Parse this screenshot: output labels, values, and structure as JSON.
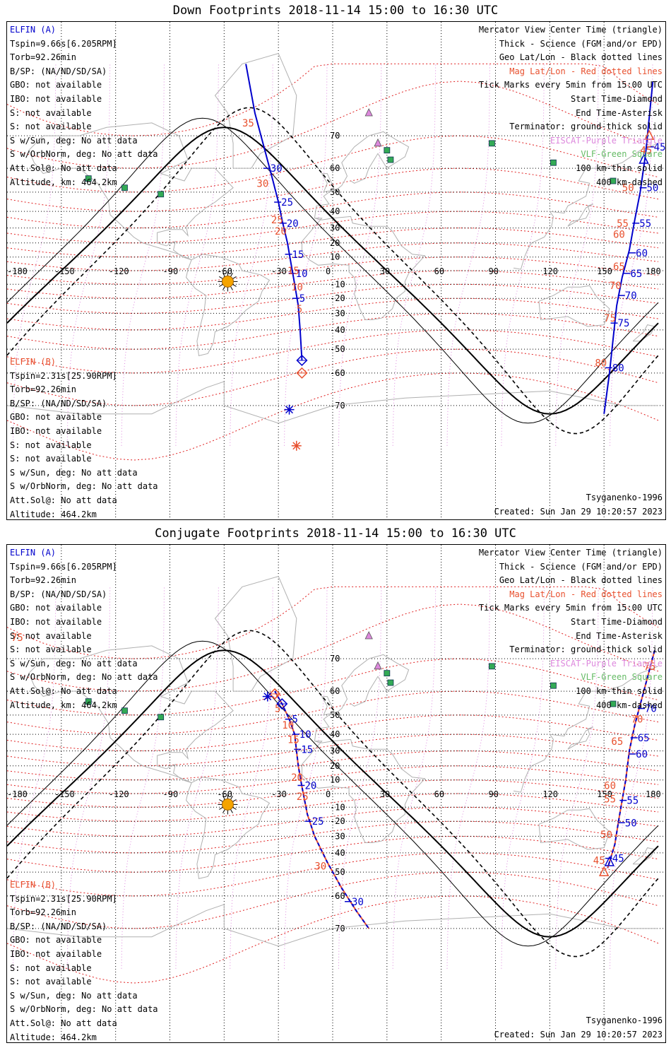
{
  "panels": [
    {
      "title": "Down Footprints 2018-11-14 15:00 to 16:30 UTC",
      "sat_a": {
        "name": "ELFIN (A)",
        "tspin": "Tspin=9.66s[6.205RPM]",
        "torb": "Torb=92.26min",
        "bsp": "B/SP: (NA/ND/SD/SA)",
        "gbo": "GBO: not available",
        "ibo": "IBO: not available",
        "s1": "S: not available",
        "s2": "S: not available",
        "sun": "S w/Sun, deg: No att data",
        "orbnorm": "S w/OrbNorm, deg: No att data",
        "attsol": "Att.Sol@: No att data",
        "alt": "Altitude, km: 464.2km"
      },
      "sat_b": {
        "name": "ELFIN (B)",
        "tspin": "Tspin=2.31s[25.90RPM]",
        "torb": "Torb=92.26min",
        "bsp": "B/SP: (NA/ND/SD/SA)",
        "gbo": "GBO: not available",
        "ibo": "IBO: not available",
        "s1": "S: not available",
        "s2": "S: not available",
        "sun": "S w/Sun, deg: No att data",
        "orbnorm": "S w/OrbNorm, deg: No att data",
        "attsol": "Att.Sol@: No att data",
        "alt": "Altitude: 464.2km"
      },
      "legend": {
        "l1": "Mercator View Center Time (triangle)",
        "l2": "Thick - Science (FGM and/or EPD)",
        "l3": "Geo Lat/Lon - Black dotted lines",
        "l4": "Mag Lat/Lon - Red dotted lines",
        "l5": "Tick Marks every 5min from 15:00 UTC",
        "l6": "Start Time-Diamond",
        "l7": "End Time-Asterisk",
        "l8": "Terminator: ground-thick solid",
        "l9": "EISCAT-Purple Triangle",
        "l10": "VLF-Green Square",
        "l11": "100 km-thin solid",
        "l12": "400 km-dashed"
      },
      "model": "Tsyganenko-1996",
      "created": "Created: Sun Jan 29 10:20:57 2023",
      "lon_labels": [
        "-180",
        "-150",
        "-120",
        "-90",
        "-60",
        "-30",
        "0",
        "30",
        "60",
        "90",
        "120",
        "150",
        "180"
      ],
      "lat_labels": [
        "70",
        "60",
        "50",
        "40",
        "30",
        "20",
        "10",
        "0",
        "-10",
        "-20",
        "-30",
        "-40",
        "-50",
        "-60",
        "-70"
      ],
      "track_a": [
        {
          "lon": -48,
          "lat": 82
        },
        {
          "lon": -43,
          "lat": 75
        },
        {
          "lon": -37,
          "lat": 65
        },
        {
          "lon": -33,
          "lat": 55
        },
        {
          "lon": -30,
          "lat": 45
        },
        {
          "lon": -28,
          "lat": 35
        },
        {
          "lon": -25,
          "lat": 20
        },
        {
          "lon": -23,
          "lat": 5
        },
        {
          "lon": -21,
          "lat": -10
        },
        {
          "lon": -19,
          "lat": -25
        },
        {
          "lon": -18,
          "lat": -40
        },
        {
          "lon": -17,
          "lat": -55
        }
      ],
      "track_b": [
        {
          "lon": 177,
          "lat": 80
        },
        {
          "lon": 173,
          "lat": 65
        },
        {
          "lon": 170,
          "lat": 50
        },
        {
          "lon": 167,
          "lat": 35
        },
        {
          "lon": 164,
          "lat": 15
        },
        {
          "lon": 160,
          "lat": -5
        },
        {
          "lon": 157,
          "lat": -25
        },
        {
          "lon": 155,
          "lat": -45
        },
        {
          "lon": 153,
          "lat": -60
        },
        {
          "lon": 150,
          "lat": -72
        }
      ],
      "ticks_a": [
        {
          "label": "30",
          "lon": -36,
          "lat": 60
        },
        {
          "label": "25",
          "lon": -30,
          "lat": 45
        },
        {
          "label": "20",
          "lon": -27,
          "lat": 33
        },
        {
          "label": "15",
          "lon": -24,
          "lat": 12
        },
        {
          "label": "10",
          "lon": -22,
          "lat": -2
        },
        {
          "label": "5",
          "lon": -20,
          "lat": -20
        }
      ],
      "ticks_b": [
        {
          "label": "45",
          "lon": 176,
          "lat": 67
        },
        {
          "label": "50",
          "lon": 172,
          "lat": 52
        },
        {
          "label": "55",
          "lon": 168,
          "lat": 33
        },
        {
          "label": "60",
          "lon": 166,
          "lat": 13
        },
        {
          "label": "65",
          "lon": 163,
          "lat": -2
        },
        {
          "label": "70",
          "lon": 160,
          "lat": -18
        },
        {
          "label": "75",
          "lon": 156,
          "lat": -36
        },
        {
          "label": "80",
          "lon": 153,
          "lat": -58
        }
      ],
      "mag_labels": [
        {
          "label": "35",
          "lon": -50,
          "lat": 73
        },
        {
          "label": "30",
          "lon": -42,
          "lat": 54
        },
        {
          "label": "25",
          "lon": -34,
          "lat": 35
        },
        {
          "label": "20",
          "lon": -32,
          "lat": 28
        },
        {
          "label": "15",
          "lon": -25,
          "lat": 0
        },
        {
          "label": "10",
          "lon": -23,
          "lat": -12
        },
        {
          "label": "5",
          "lon": -20,
          "lat": -27
        },
        {
          "label": "45",
          "lon": 170,
          "lat": 66
        },
        {
          "label": "50",
          "lon": 160,
          "lat": 52
        },
        {
          "label": "55",
          "lon": 157,
          "lat": 33
        },
        {
          "label": "60",
          "lon": 155,
          "lat": 26
        },
        {
          "label": "65",
          "lon": 155,
          "lat": 3
        },
        {
          "label": "70",
          "lon": 153,
          "lat": -11
        },
        {
          "label": "75",
          "lon": 150,
          "lat": -33
        },
        {
          "label": "80",
          "lon": 145,
          "lat": -56
        }
      ]
    },
    {
      "title": "Conjugate Footprints 2018-11-14 15:00 to 16:30 UTC",
      "sat_a": {
        "name": "ELFIN (A)",
        "tspin": "Tspin=9.66s[6.205RPM]",
        "torb": "Torb=92.26min",
        "bsp": "B/SP: (NA/ND/SD/SA)",
        "gbo": "GBO: not available",
        "ibo": "IBO: not available",
        "s1": "S: not available",
        "s2": "S: not available",
        "sun": "S w/Sun, deg: No att data",
        "orbnorm": "S w/OrbNorm, deg: No att data",
        "attsol": "Att.Sol@: No att data",
        "alt": "Altitude, km: 464.2km"
      },
      "sat_b": {
        "name": "ELFIN (B)",
        "tspin": "Tspin=2.31s[25.90RPM]",
        "torb": "Torb=92.26min",
        "bsp": "B/SP: (NA/ND/SD/SA)",
        "gbo": "GBO: not available",
        "ibo": "IBO: not available",
        "s1": "S: not available",
        "s2": "S: not available",
        "sun": "S w/Sun, deg: No att data",
        "orbnorm": "S w/OrbNorm, deg: No att data",
        "attsol": "Att.Sol@: No att data",
        "alt": "Altitude: 464.2km"
      },
      "legend": {
        "l1": "Mercator View Center Time (triangle)",
        "l2": "Thick - Science (FGM and/or EPD)",
        "l3": "Geo Lat/Lon - Black dotted lines",
        "l4": "Mag Lat/Lon - Red dotted lines",
        "l5": "Tick Marks every 5min from 15:00 UTC",
        "l6": "Start Time-Diamond",
        "l7": "End Time-Asterisk",
        "l8": "Terminator: ground-thick solid",
        "l9": "EISCAT-Purple Triangle",
        "l10": "VLF-Green Square",
        "l11": "100 km-thin solid",
        "l12": "400 km-dashed"
      },
      "model": "Tsyganenko-1996",
      "created": "Created: Sun Jan 29 10:20:57 2023",
      "lon_labels": [
        "-180",
        "-150",
        "-120",
        "-90",
        "-60",
        "-30",
        "0",
        "30",
        "60",
        "90",
        "120",
        "150",
        "180"
      ],
      "lat_labels": [
        "70",
        "60",
        "50",
        "40",
        "30",
        "20",
        "10",
        "0",
        "-10",
        "-20",
        "-30",
        "-40",
        "-50",
        "-60",
        "-70"
      ],
      "track_a": [
        {
          "lon": -32,
          "lat": 60
        },
        {
          "lon": -28,
          "lat": 55
        },
        {
          "lon": -24,
          "lat": 48
        },
        {
          "lon": -21,
          "lat": 40
        },
        {
          "lon": -20,
          "lat": 30
        },
        {
          "lon": -19,
          "lat": 20
        },
        {
          "lon": -17,
          "lat": 5
        },
        {
          "lon": -14,
          "lat": -15
        },
        {
          "lon": -10,
          "lat": -30
        },
        {
          "lon": -3,
          "lat": -45
        },
        {
          "lon": 5,
          "lat": -57
        },
        {
          "lon": 13,
          "lat": -65
        },
        {
          "lon": 20,
          "lat": -70
        }
      ],
      "track_b": [
        {
          "lon": 178,
          "lat": 72
        },
        {
          "lon": 172,
          "lat": 60
        },
        {
          "lon": 167,
          "lat": 45
        },
        {
          "lon": 164,
          "lat": 30
        },
        {
          "lon": 162,
          "lat": 10
        },
        {
          "lon": 160,
          "lat": -5
        },
        {
          "lon": 158,
          "lat": -20
        },
        {
          "lon": 156,
          "lat": -35
        },
        {
          "lon": 152,
          "lat": -48
        }
      ],
      "ticks_a": [
        {
          "label": "5",
          "lon": -24,
          "lat": 48
        },
        {
          "label": "10",
          "lon": -20,
          "lat": 40
        },
        {
          "label": "15",
          "lon": -19,
          "lat": 31
        },
        {
          "label": "20",
          "lon": -17,
          "lat": 6
        },
        {
          "label": "25",
          "lon": -13,
          "lat": -20
        },
        {
          "label": "30",
          "lon": 9,
          "lat": -62
        }
      ],
      "ticks_b": [
        {
          "label": "45",
          "lon": 153,
          "lat": -43
        },
        {
          "label": "50",
          "lon": 160,
          "lat": -21
        },
        {
          "label": "55",
          "lon": 161,
          "lat": -5
        },
        {
          "label": "60",
          "lon": 166,
          "lat": 28
        },
        {
          "label": "65",
          "lon": 167,
          "lat": 38
        },
        {
          "label": "70",
          "lon": 171,
          "lat": 53
        }
      ],
      "mag_labels": [
        {
          "label": "5",
          "lon": -32,
          "lat": 53
        },
        {
          "label": "10",
          "lon": -28,
          "lat": 45
        },
        {
          "label": "15",
          "lon": -25,
          "lat": 37
        },
        {
          "label": "20",
          "lon": -23,
          "lat": 12
        },
        {
          "label": "25",
          "lon": -20,
          "lat": -2
        },
        {
          "label": "30",
          "lon": -10,
          "lat": -47
        },
        {
          "label": "45",
          "lon": 144,
          "lat": -44
        },
        {
          "label": "50",
          "lon": 148,
          "lat": -29
        },
        {
          "label": "55",
          "lon": 150,
          "lat": -4
        },
        {
          "label": "60",
          "lon": 150,
          "lat": 6
        },
        {
          "label": "65",
          "lon": 154,
          "lat": 36
        },
        {
          "label": "70",
          "lon": 165,
          "lat": 48
        },
        {
          "label": "75",
          "lon": 172,
          "lat": 68
        }
      ],
      "extra_label": "75"
    }
  ],
  "colors": {
    "sat_a": "#0000cc",
    "sat_b": "#e8502e",
    "mag_grid": "#e02020",
    "eiscat": "#dd88dd",
    "vlf": "#33aa55",
    "sun": "#f5a400",
    "coast": "#b0b0b0"
  }
}
